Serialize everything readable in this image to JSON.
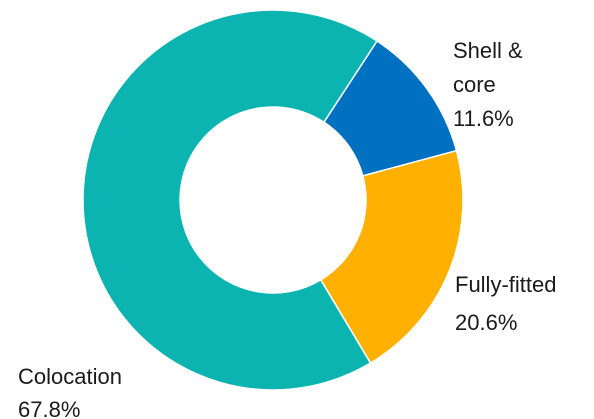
{
  "chart_data": {
    "type": "pie",
    "style": "donut",
    "slices": [
      {
        "label_lines": [
          "Shell &",
          "core"
        ],
        "value_label": "11.6%",
        "value": 11.6,
        "color": "#0070C0"
      },
      {
        "label_lines": [
          "Fully-fitted"
        ],
        "value_label": "20.6%",
        "value": 20.6,
        "color": "#FFB000"
      },
      {
        "label_lines": [
          "Colocation"
        ],
        "value_label": "67.8%",
        "value": 67.8,
        "color": "#0BB3B1"
      }
    ]
  }
}
